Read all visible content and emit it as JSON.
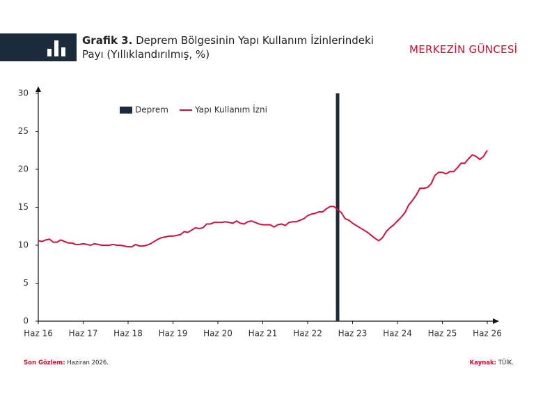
{
  "header": {
    "title_prefix": "Grafik 3.",
    "brand": "MERKEZİN GÜNCESİ"
  },
  "chart_data": {
    "type": "line",
    "title": "Deprem Bölgesinin Yapı Kullanım İzinlerindeki Payı (Yıllıklandırılmış, %)",
    "categories": [
      "Haz 16",
      null,
      null,
      null,
      null,
      null,
      null,
      null,
      null,
      null,
      null,
      null,
      "Haz 17",
      null,
      null,
      null,
      null,
      null,
      null,
      null,
      null,
      null,
      null,
      null,
      "Haz 18",
      null,
      null,
      null,
      null,
      null,
      null,
      null,
      null,
      null,
      null,
      null,
      "Haz 19",
      null,
      null,
      null,
      null,
      null,
      null,
      null,
      null,
      null,
      null,
      null,
      "Haz 20",
      null,
      null,
      null,
      null,
      null,
      null,
      null,
      null,
      null,
      null,
      null,
      "Haz 21",
      null,
      null,
      null,
      null,
      null,
      null,
      null,
      null,
      null,
      null,
      null,
      "Haz 22",
      null,
      null,
      null,
      null,
      null,
      null,
      null,
      null,
      null,
      null,
      null,
      "Haz 23",
      null,
      null,
      null,
      null,
      null,
      null,
      null,
      null,
      null,
      null,
      null,
      "Haz 24",
      null,
      null,
      null,
      null,
      null,
      null,
      null,
      null,
      null,
      null,
      null,
      "Haz 25",
      null,
      null,
      null,
      null,
      null,
      null,
      null,
      null,
      null,
      null,
      null,
      "Haz 26"
    ],
    "series": [
      {
        "name": "Deprem",
        "type": "bar",
        "color": "#1c2b3a",
        "values": [
          null,
          null,
          null,
          null,
          null,
          null,
          null,
          null,
          null,
          null,
          null,
          null,
          null,
          null,
          null,
          null,
          null,
          null,
          null,
          null,
          null,
          null,
          null,
          null,
          null,
          null,
          null,
          null,
          null,
          null,
          null,
          null,
          null,
          null,
          null,
          null,
          null,
          null,
          null,
          null,
          null,
          null,
          null,
          null,
          null,
          null,
          null,
          null,
          null,
          null,
          null,
          null,
          null,
          null,
          null,
          null,
          null,
          null,
          null,
          null,
          null,
          null,
          null,
          null,
          null,
          null,
          null,
          null,
          null,
          null,
          null,
          null,
          null,
          null,
          null,
          null,
          null,
          null,
          null,
          null,
          30,
          null,
          null,
          null,
          null,
          null,
          null,
          null,
          null,
          null,
          null,
          null,
          null,
          null,
          null,
          null,
          null,
          null,
          null,
          null,
          null,
          null,
          null,
          null,
          null,
          null,
          null,
          null,
          null,
          null,
          null,
          null,
          null,
          null,
          null,
          null,
          null,
          null,
          null,
          null,
          null
        ]
      },
      {
        "name": "Yapı Kullanım İzni",
        "type": "line",
        "color": "#d0103a",
        "values": [
          10.6,
          10.5,
          10.7,
          10.8,
          10.4,
          10.4,
          10.7,
          10.5,
          10.3,
          10.3,
          10.1,
          10.1,
          10.2,
          10.1,
          10.0,
          10.2,
          10.1,
          10.0,
          10.0,
          10.0,
          10.1,
          10.0,
          10.0,
          9.9,
          9.8,
          9.8,
          10.1,
          9.9,
          9.9,
          10.0,
          10.2,
          10.5,
          10.8,
          11.0,
          11.1,
          11.2,
          11.2,
          11.3,
          11.4,
          11.8,
          11.7,
          12.0,
          12.3,
          12.2,
          12.3,
          12.8,
          12.8,
          13.0,
          13.0,
          13.0,
          13.1,
          13.0,
          12.9,
          13.2,
          12.9,
          12.8,
          13.1,
          13.2,
          13.0,
          12.8,
          12.7,
          12.7,
          12.7,
          12.4,
          12.7,
          12.8,
          12.6,
          13.0,
          13.1,
          13.1,
          13.3,
          13.5,
          13.9,
          14.1,
          14.2,
          14.4,
          14.4,
          14.8,
          15.1,
          15.1,
          14.7,
          14.3,
          13.5,
          13.3,
          12.9,
          12.6,
          12.3,
          12.0,
          11.7,
          11.3,
          10.9,
          10.6,
          11.0,
          11.8,
          12.3,
          12.7,
          13.2,
          13.7,
          14.3,
          15.3,
          15.9,
          16.6,
          17.5,
          17.5,
          17.6,
          18.1,
          19.2,
          19.6,
          19.6,
          19.4,
          19.7,
          19.7,
          20.2,
          20.8,
          20.8,
          21.4,
          21.9,
          21.7,
          21.3,
          21.7,
          22.5
        ]
      }
    ],
    "ylim": [
      0,
      30
    ],
    "yticks": [
      0,
      5,
      10,
      15,
      20,
      25,
      30
    ],
    "grid": false,
    "legend": "top"
  },
  "footer": {
    "left_label": "Son Gözlem:",
    "left_text": "Haziran 2026.",
    "right_label": "Kaynak:",
    "right_text": "TÜİK."
  }
}
